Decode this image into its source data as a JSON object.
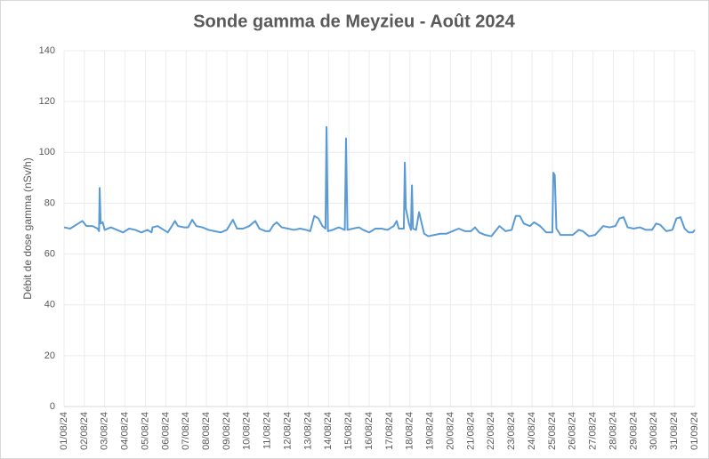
{
  "chart_data": {
    "type": "line",
    "title": "Sonde gamma de Meyzieu - Août 2024",
    "y_label": "Débit de dose gamma (nSv/h)",
    "xlim": [
      0,
      31
    ],
    "xticks": [
      {
        "value": 0,
        "label": "01/08/24"
      },
      {
        "value": 1,
        "label": "02/08/24"
      },
      {
        "value": 2,
        "label": "03/08/24"
      },
      {
        "value": 3,
        "label": "04/08/24"
      },
      {
        "value": 4,
        "label": "05/08/24"
      },
      {
        "value": 5,
        "label": "06/08/24"
      },
      {
        "value": 6,
        "label": "07/08/24"
      },
      {
        "value": 7,
        "label": "08/08/24"
      },
      {
        "value": 8,
        "label": "09/08/24"
      },
      {
        "value": 9,
        "label": "10/08/24"
      },
      {
        "value": 10,
        "label": "11/08/24"
      },
      {
        "value": 11,
        "label": "12/08/24"
      },
      {
        "value": 12,
        "label": "13/08/24"
      },
      {
        "value": 13,
        "label": "14/08/24"
      },
      {
        "value": 14,
        "label": "15/08/24"
      },
      {
        "value": 15,
        "label": "16/08/24"
      },
      {
        "value": 16,
        "label": "17/08/24"
      },
      {
        "value": 17,
        "label": "18/08/24"
      },
      {
        "value": 18,
        "label": "19/08/24"
      },
      {
        "value": 19,
        "label": "20/08/24"
      },
      {
        "value": 20,
        "label": "21/08/24"
      },
      {
        "value": 21,
        "label": "22/08/24"
      },
      {
        "value": 22,
        "label": "23/08/24"
      },
      {
        "value": 23,
        "label": "24/08/24"
      },
      {
        "value": 24,
        "label": "25/08/24"
      },
      {
        "value": 25,
        "label": "26/08/24"
      },
      {
        "value": 26,
        "label": "27/08/24"
      },
      {
        "value": 27,
        "label": "28/08/24"
      },
      {
        "value": 28,
        "label": "29/08/24"
      },
      {
        "value": 29,
        "label": "30/08/24"
      },
      {
        "value": 30,
        "label": "31/08/24"
      },
      {
        "value": 31,
        "label": "01/09/24"
      }
    ],
    "ylim": [
      0,
      140
    ],
    "yticks": [
      0,
      20,
      40,
      60,
      80,
      100,
      120,
      140
    ],
    "grid": true,
    "series": [
      {
        "color": "#5b9bd5",
        "x": [
          0,
          0.3,
          0.6,
          0.9,
          1.1,
          1.4,
          1.65,
          1.72,
          1.75,
          1.8,
          1.9,
          2.0,
          2.3,
          2.6,
          2.9,
          3.2,
          3.5,
          3.8,
          4.1,
          4.3,
          4.35,
          4.6,
          4.9,
          5.1,
          5.3,
          5.45,
          5.6,
          5.9,
          6.1,
          6.3,
          6.5,
          6.8,
          7.1,
          7.4,
          7.7,
          8.0,
          8.3,
          8.5,
          8.8,
          9.1,
          9.4,
          9.6,
          9.9,
          10.1,
          10.3,
          10.45,
          10.7,
          11.0,
          11.3,
          11.6,
          11.9,
          12.1,
          12.3,
          12.5,
          12.7,
          12.85,
          12.9,
          12.97,
          13.2,
          13.5,
          13.8,
          13.86,
          13.93,
          14.2,
          14.5,
          14.7,
          15.0,
          15.3,
          15.6,
          15.9,
          16.2,
          16.35,
          16.45,
          16.7,
          16.75,
          16.8,
          16.95,
          17.05,
          17.1,
          17.15,
          17.3,
          17.45,
          17.55,
          17.7,
          17.9,
          18.2,
          18.5,
          18.8,
          19.1,
          19.4,
          19.7,
          20.0,
          20.2,
          20.4,
          20.7,
          21.0,
          21.4,
          21.7,
          22.0,
          22.2,
          22.4,
          22.6,
          22.9,
          23.1,
          23.4,
          23.7,
          24.0,
          24.05,
          24.12,
          24.2,
          24.4,
          24.7,
          25.0,
          25.3,
          25.5,
          25.8,
          26.1,
          26.5,
          26.8,
          27.1,
          27.3,
          27.5,
          27.7,
          28.0,
          28.3,
          28.6,
          28.9,
          29.1,
          29.3,
          29.6,
          29.9,
          30.1,
          30.3,
          30.5,
          30.7,
          30.9,
          31
        ],
        "values": [
          70.5,
          70,
          71.5,
          73,
          71,
          71,
          70,
          69,
          86,
          72,
          72.5,
          69.5,
          70.5,
          69.5,
          68.5,
          70,
          69.5,
          68.5,
          69.5,
          68.5,
          70.5,
          71,
          69.5,
          68.5,
          71,
          73,
          71,
          70.5,
          70.5,
          73.5,
          71,
          70.5,
          69.5,
          69,
          68.5,
          69.5,
          73.5,
          70,
          70,
          71,
          73,
          70,
          69,
          69,
          71.5,
          72.5,
          70.5,
          70,
          69.5,
          70,
          69.5,
          69,
          75,
          74,
          71,
          70,
          110,
          69,
          69.5,
          70.5,
          69.5,
          105.5,
          69.5,
          70,
          70.5,
          69.5,
          68.5,
          70,
          70,
          69.5,
          71,
          73,
          70,
          70,
          96,
          78,
          72,
          69.5,
          87,
          70,
          69.5,
          76.5,
          73,
          68,
          67,
          67.5,
          68,
          68,
          69,
          70,
          69,
          69,
          70.5,
          68.5,
          67.5,
          67,
          71,
          69,
          69.5,
          75,
          75,
          72,
          71,
          72.5,
          71,
          68.5,
          68.5,
          92,
          91,
          70,
          67.5,
          67.5,
          67.5,
          69.5,
          69,
          67,
          67.5,
          71,
          70.5,
          71,
          74,
          74.5,
          70.5,
          70,
          70.5,
          69.5,
          69.5,
          72,
          71.5,
          69,
          69.5,
          74,
          74.5,
          70,
          68.5,
          68.5,
          69.5
        ]
      }
    ]
  }
}
